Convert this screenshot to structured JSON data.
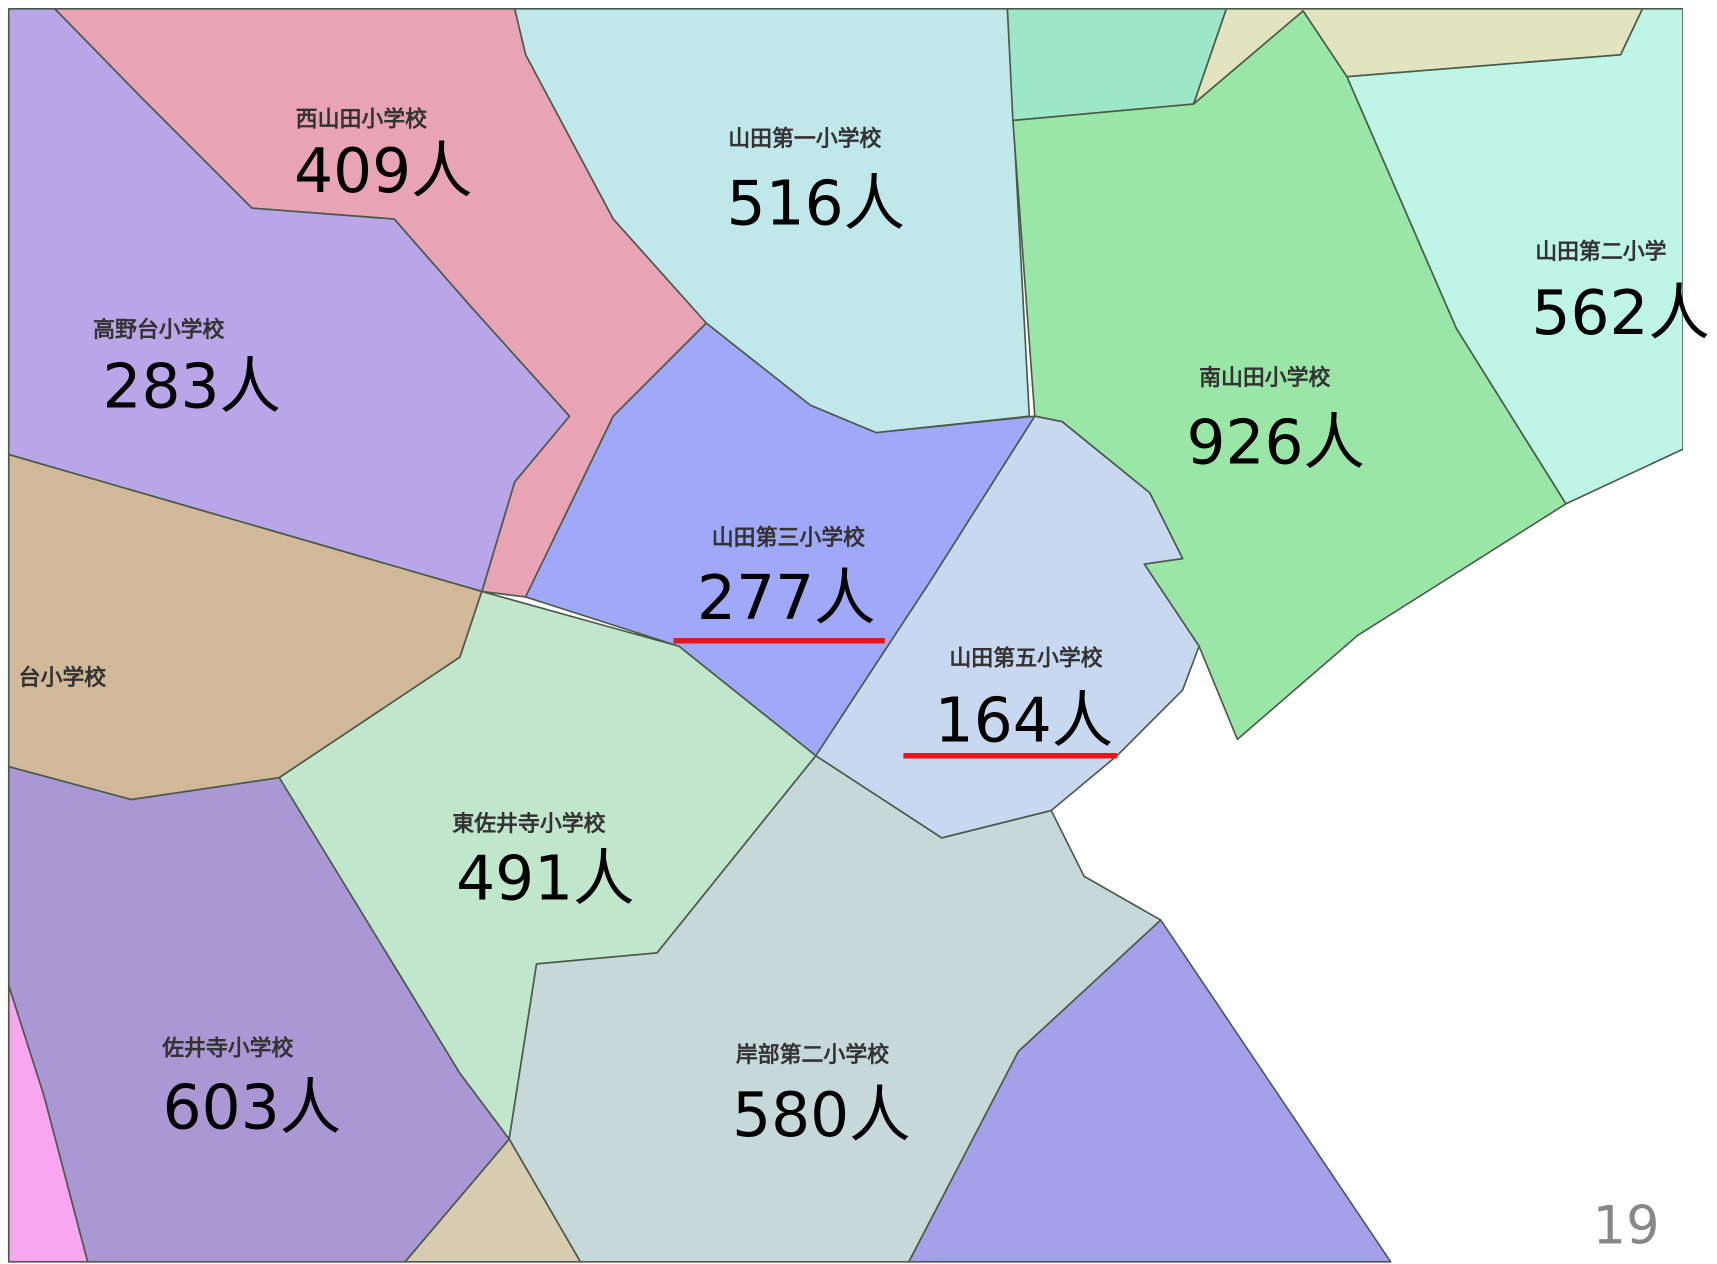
{
  "regions": [
    {
      "name": "西山田小学校",
      "count": "409人"
    },
    {
      "name": "山田第一小学校",
      "count": "516人"
    },
    {
      "name": "高野台小学校",
      "count": "283人"
    },
    {
      "name": "山田第二小学",
      "count": "562人"
    },
    {
      "name": "南山田小学校",
      "count": "926人"
    },
    {
      "name": "山田第三小学校",
      "count": "277人"
    },
    {
      "name": "台小学校"
    },
    {
      "name": "山田第五小学校",
      "count": "164人"
    },
    {
      "name": "東佐井寺小学校",
      "count": "491人"
    },
    {
      "name": "佐井寺小学校",
      "count": "603人"
    },
    {
      "name": "岸部第二小学校",
      "count": "580人"
    }
  ],
  "page_number": "19"
}
